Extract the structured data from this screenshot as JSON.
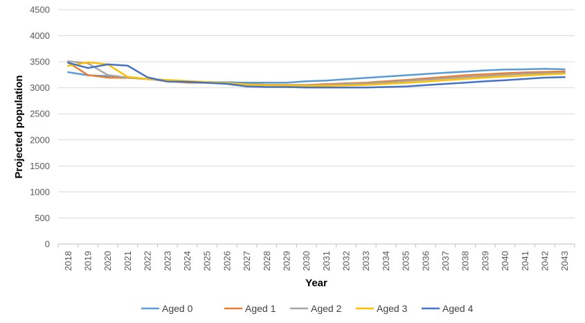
{
  "chart_data": {
    "type": "line",
    "xlabel": "Year",
    "ylabel": "Projected population",
    "ylim": [
      0,
      4500
    ],
    "yticks": [
      0,
      500,
      1000,
      1500,
      2000,
      2500,
      3000,
      3500,
      4000,
      4500
    ],
    "grid": true,
    "legend_position": "bottom",
    "categories": [
      "2018",
      "2019",
      "2020",
      "2021",
      "2022",
      "2023",
      "2024",
      "2025",
      "2026",
      "2027",
      "2028",
      "2029",
      "2030",
      "2031",
      "2032",
      "2033",
      "2034",
      "2035",
      "2036",
      "2037",
      "2038",
      "2039",
      "2040",
      "2041",
      "2042",
      "2043"
    ],
    "series": [
      {
        "name": "Aged 0",
        "color": "#5B9BD5",
        "values": [
          3300,
          3240,
          3225,
          3200,
          3170,
          3135,
          3120,
          3110,
          3105,
          3100,
          3100,
          3100,
          3125,
          3140,
          3165,
          3190,
          3215,
          3240,
          3265,
          3290,
          3310,
          3335,
          3350,
          3355,
          3365,
          3355
        ]
      },
      {
        "name": "Aged 1",
        "color": "#ED7D31",
        "values": [
          3490,
          3245,
          3195,
          3190,
          3170,
          3125,
          3100,
          3095,
          3085,
          3070,
          3060,
          3055,
          3055,
          3070,
          3085,
          3100,
          3125,
          3150,
          3180,
          3210,
          3240,
          3260,
          3280,
          3295,
          3305,
          3315
        ]
      },
      {
        "name": "Aged 2",
        "color": "#A5A5A5",
        "values": [
          3510,
          3470,
          3245,
          3195,
          3165,
          3135,
          3115,
          3100,
          3085,
          3070,
          3060,
          3050,
          3050,
          3055,
          3070,
          3085,
          3105,
          3130,
          3155,
          3180,
          3205,
          3225,
          3250,
          3270,
          3280,
          3290
        ]
      },
      {
        "name": "Aged 3",
        "color": "#FFC000",
        "values": [
          3420,
          3490,
          3450,
          3210,
          3170,
          3150,
          3130,
          3110,
          3090,
          3060,
          3050,
          3045,
          3040,
          3040,
          3045,
          3055,
          3075,
          3095,
          3120,
          3145,
          3170,
          3195,
          3215,
          3235,
          3255,
          3270
        ]
      },
      {
        "name": "Aged 4",
        "color": "#4472C4",
        "values": [
          3480,
          3380,
          3450,
          3425,
          3200,
          3120,
          3115,
          3095,
          3075,
          3025,
          3015,
          3015,
          3005,
          3005,
          3005,
          3005,
          3015,
          3025,
          3050,
          3075,
          3100,
          3125,
          3145,
          3170,
          3195,
          3205
        ]
      }
    ]
  }
}
